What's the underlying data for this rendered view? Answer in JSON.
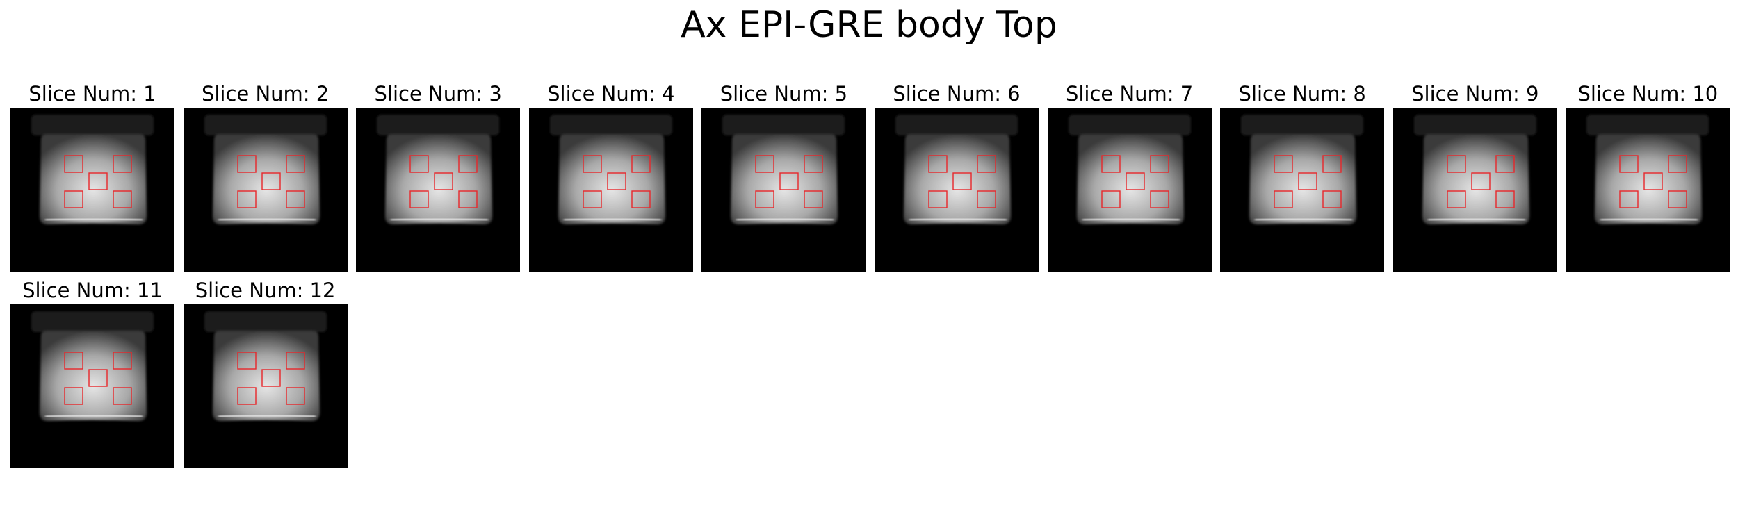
{
  "figure": {
    "title": "Ax EPI-GRE body Top"
  },
  "panels": [
    {
      "label": "Slice Num: 1",
      "slice": 1
    },
    {
      "label": "Slice Num: 2",
      "slice": 2
    },
    {
      "label": "Slice Num: 3",
      "slice": 3
    },
    {
      "label": "Slice Num: 4",
      "slice": 4
    },
    {
      "label": "Slice Num: 5",
      "slice": 5
    },
    {
      "label": "Slice Num: 6",
      "slice": 6
    },
    {
      "label": "Slice Num: 7",
      "slice": 7
    },
    {
      "label": "Slice Num: 8",
      "slice": 8
    },
    {
      "label": "Slice Num: 9",
      "slice": 9
    },
    {
      "label": "Slice Num: 10",
      "slice": 10
    },
    {
      "label": "Slice Num: 11",
      "slice": 11
    },
    {
      "label": "Slice Num: 12",
      "slice": 12
    }
  ],
  "colors": {
    "roi": "#e8262a",
    "background": "#000000",
    "phantom_bright": "#e6e6e6",
    "phantom_dark": "#3a3a3a"
  }
}
